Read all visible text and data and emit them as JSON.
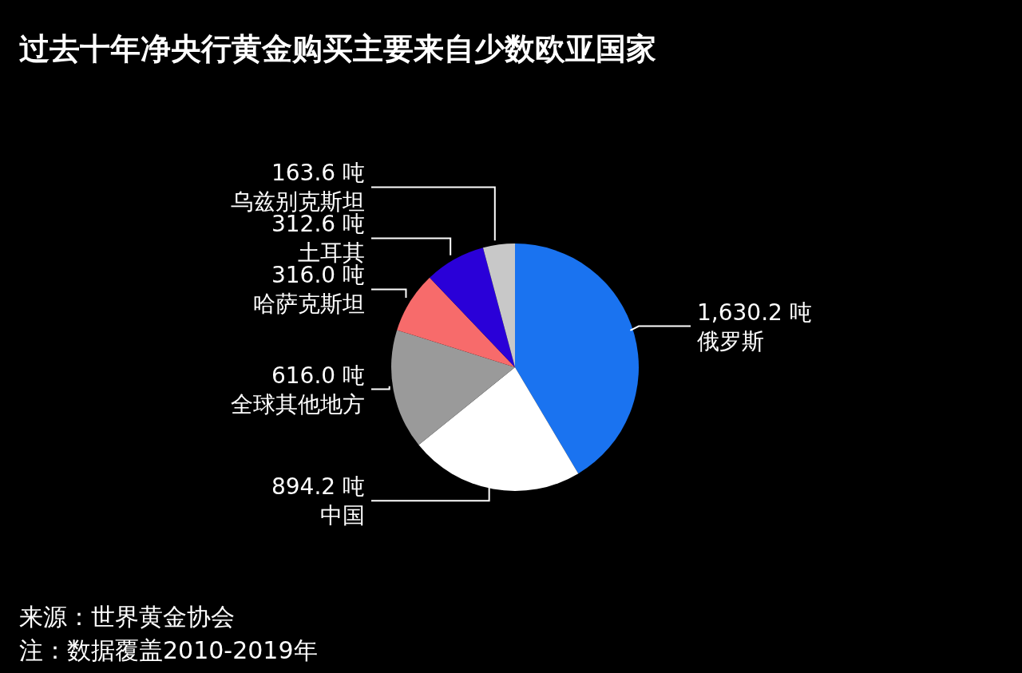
{
  "chart_data": {
    "type": "pie",
    "title": "过去十年净央行黄金购买主要来自少数欧亚国家",
    "categories": [
      "俄罗斯",
      "中国",
      "全球其他地方",
      "哈萨克斯坦",
      "土耳其",
      "乌兹别克斯坦"
    ],
    "values": [
      1630.2,
      894.2,
      616.0,
      316.0,
      312.6,
      163.6
    ],
    "colors": [
      "#1a73f0",
      "#ffffff",
      "#9a9a9a",
      "#f76b6b",
      "#2a00d8",
      "#c8c8c8"
    ],
    "value_labels": [
      "1,630.2 吨",
      "894.2 吨",
      "616.0 吨",
      "316.0 吨",
      "312.6 吨",
      "163.6 吨"
    ],
    "annotations": [
      "来源：世界黄金协会",
      "注：数据覆盖2010-2019年"
    ]
  }
}
